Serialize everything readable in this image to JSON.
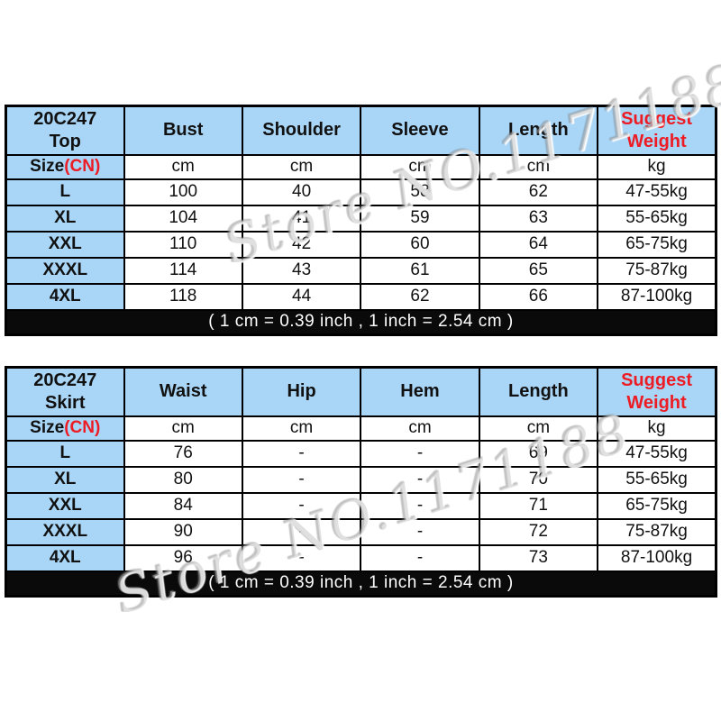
{
  "watermark": {
    "text": "Store NO.1171188"
  },
  "colors": {
    "header_blue": "#a9d5f6",
    "accent_red": "#ed1c24",
    "note_bg": "#0a0a0a",
    "note_text": "#ffffff",
    "border_black": "#000000"
  },
  "tables": [
    {
      "title_code": "20C247",
      "title_item": "Top",
      "size_header": "Size",
      "size_header_cn": "(CN)",
      "measure_columns": [
        "Bust",
        "Shoulder",
        "Sleeve",
        "Length"
      ],
      "weight_header": [
        "Suggest",
        "Weight"
      ],
      "unit_cm": "cm",
      "unit_kg": "kg",
      "rows": [
        {
          "size": "L",
          "values": [
            "100",
            "40",
            "58",
            "62"
          ],
          "weight": "47-55kg"
        },
        {
          "size": "XL",
          "values": [
            "104",
            "41",
            "59",
            "63"
          ],
          "weight": "55-65kg"
        },
        {
          "size": "XXL",
          "values": [
            "110",
            "42",
            "60",
            "64"
          ],
          "weight": "65-75kg"
        },
        {
          "size": "XXXL",
          "values": [
            "114",
            "43",
            "61",
            "65"
          ],
          "weight": "75-87kg"
        },
        {
          "size": "4XL",
          "values": [
            "118",
            "44",
            "62",
            "66"
          ],
          "weight": "87-100kg"
        }
      ],
      "conversion_note": "( 1 cm = 0.39 inch , 1 inch = 2.54 cm )"
    },
    {
      "title_code": "20C247",
      "title_item": "Skirt",
      "size_header": "Size",
      "size_header_cn": "(CN)",
      "measure_columns": [
        "Waist",
        "Hip",
        "Hem",
        "Length"
      ],
      "weight_header": [
        "Suggest",
        "Weight"
      ],
      "unit_cm": "cm",
      "unit_kg": "kg",
      "rows": [
        {
          "size": "L",
          "values": [
            "76",
            "-",
            "-",
            "69"
          ],
          "weight": "47-55kg"
        },
        {
          "size": "XL",
          "values": [
            "80",
            "-",
            "-",
            "70"
          ],
          "weight": "55-65kg"
        },
        {
          "size": "XXL",
          "values": [
            "84",
            "-",
            "-",
            "71"
          ],
          "weight": "65-75kg"
        },
        {
          "size": "XXXL",
          "values": [
            "90",
            "-",
            "-",
            "72"
          ],
          "weight": "75-87kg"
        },
        {
          "size": "4XL",
          "values": [
            "96",
            "-",
            "-",
            "73"
          ],
          "weight": "87-100kg"
        }
      ],
      "conversion_note": "( 1 cm = 0.39 inch , 1 inch = 2.54 cm )"
    }
  ]
}
